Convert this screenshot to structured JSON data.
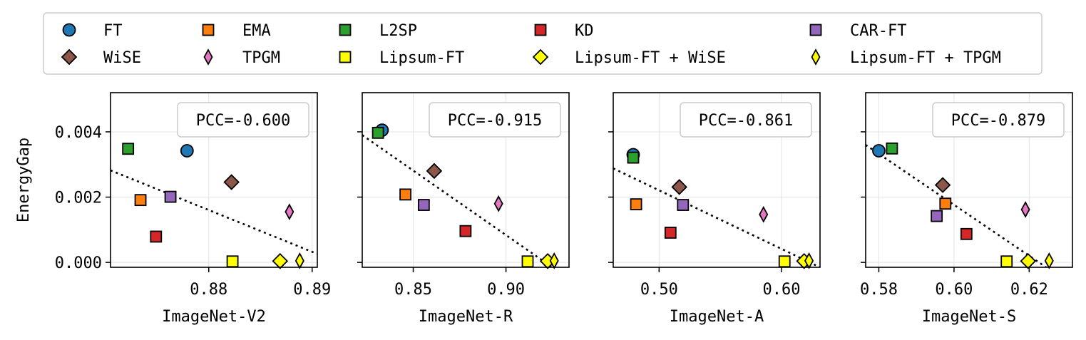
{
  "legend": {
    "items": [
      {
        "label": "FT",
        "marker": "circle",
        "color": "#1f77b4"
      },
      {
        "label": "EMA",
        "marker": "square",
        "color": "#ff7f0e"
      },
      {
        "label": "L2SP",
        "marker": "square",
        "color": "#2ca02c"
      },
      {
        "label": "KD",
        "marker": "square",
        "color": "#d62728"
      },
      {
        "label": "CAR-FT",
        "marker": "square",
        "color": "#9467bd"
      },
      {
        "label": "WiSE",
        "marker": "diamond",
        "color": "#8c564b"
      },
      {
        "label": "TPGM",
        "marker": "thin_diamond",
        "color": "#e377c2"
      },
      {
        "label": "Lipsum-FT",
        "marker": "square",
        "color": "#ffff00"
      },
      {
        "label": "Lipsum-FT + WiSE",
        "marker": "diamond",
        "color": "#ffff00"
      },
      {
        "label": "Lipsum-FT + TPGM",
        "marker": "thin_diamond",
        "color": "#ffff00"
      }
    ]
  },
  "chart_data": [
    {
      "type": "scatter",
      "xlabel": "ImageNet-V2",
      "ylabel": "EnergyGap",
      "annotation": "PCC=-0.600",
      "xlim": [
        0.8705,
        0.8905
      ],
      "ylim": [
        -0.00015,
        0.0052
      ],
      "xticks": [
        0.88,
        0.89
      ],
      "xtick_labels": [
        "0.88",
        "0.89"
      ],
      "yticks": [
        0.0,
        0.002,
        0.004
      ],
      "ytick_labels": [
        "0.000",
        "0.002",
        "0.004"
      ],
      "grid": true,
      "trendline": {
        "x": [
          0.8705,
          0.8905
        ],
        "y": [
          0.00282,
          0.00026
        ]
      },
      "points": [
        {
          "series": "FT",
          "x": 0.8779,
          "y": 0.00342
        },
        {
          "series": "EMA",
          "x": 0.8734,
          "y": 0.00191
        },
        {
          "series": "L2SP",
          "x": 0.8722,
          "y": 0.00348
        },
        {
          "series": "KD",
          "x": 0.8749,
          "y": 0.00079
        },
        {
          "series": "CAR-FT",
          "x": 0.8763,
          "y": 0.00201
        },
        {
          "series": "WiSE",
          "x": 0.8822,
          "y": 0.00246
        },
        {
          "series": "TPGM",
          "x": 0.8878,
          "y": 0.00155
        },
        {
          "series": "Lipsum-FT",
          "x": 0.8823,
          "y": 3e-05
        },
        {
          "series": "Lipsum-FT + WiSE",
          "x": 0.8869,
          "y": 4e-05
        },
        {
          "series": "Lipsum-FT + TPGM",
          "x": 0.8888,
          "y": 5e-05
        }
      ]
    },
    {
      "type": "scatter",
      "xlabel": "ImageNet-R",
      "ylabel": "",
      "annotation": "PCC=-0.915",
      "xlim": [
        0.8225,
        0.934
      ],
      "ylim": [
        -0.00015,
        0.0052
      ],
      "xticks": [
        0.85,
        0.9
      ],
      "xtick_labels": [
        "0.85",
        "0.90"
      ],
      "yticks": [
        0.0,
        0.002,
        0.004
      ],
      "ytick_labels": [
        "",
        "",
        ""
      ],
      "grid": true,
      "trendline": {
        "x": [
          0.8225,
          0.925
        ],
        "y": [
          0.0039,
          -0.00015
        ]
      },
      "points": [
        {
          "series": "FT",
          "x": 0.8332,
          "y": 0.00405
        },
        {
          "series": "EMA",
          "x": 0.8458,
          "y": 0.00208
        },
        {
          "series": "L2SP",
          "x": 0.831,
          "y": 0.00397
        },
        {
          "series": "KD",
          "x": 0.8782,
          "y": 0.00096
        },
        {
          "series": "CAR-FT",
          "x": 0.8557,
          "y": 0.00176
        },
        {
          "series": "WiSE",
          "x": 0.8613,
          "y": 0.0028
        },
        {
          "series": "TPGM",
          "x": 0.896,
          "y": 0.0018
        },
        {
          "series": "Lipsum-FT",
          "x": 0.9117,
          "y": 3e-05
        },
        {
          "series": "Lipsum-FT + WiSE",
          "x": 0.9225,
          "y": 4e-05
        },
        {
          "series": "Lipsum-FT + TPGM",
          "x": 0.926,
          "y": 5e-05
        }
      ]
    },
    {
      "type": "scatter",
      "xlabel": "ImageNet-A",
      "ylabel": "",
      "annotation": "PCC=-0.861",
      "xlim": [
        0.4625,
        0.6315
      ],
      "ylim": [
        -0.00015,
        0.0052
      ],
      "xticks": [
        0.5,
        0.6
      ],
      "xtick_labels": [
        "0.50",
        "0.60"
      ],
      "yticks": [
        0.0,
        0.002,
        0.004
      ],
      "ytick_labels": [
        "",
        "",
        ""
      ],
      "grid": true,
      "trendline": {
        "x": [
          0.4625,
          0.6315
        ],
        "y": [
          0.00288,
          -0.00015
        ]
      },
      "points": [
        {
          "series": "FT",
          "x": 0.4788,
          "y": 0.0033
        },
        {
          "series": "EMA",
          "x": 0.4812,
          "y": 0.00178
        },
        {
          "series": "L2SP",
          "x": 0.4788,
          "y": 0.00321
        },
        {
          "series": "KD",
          "x": 0.5093,
          "y": 0.00091
        },
        {
          "series": "CAR-FT",
          "x": 0.5195,
          "y": 0.00176
        },
        {
          "series": "WiSE",
          "x": 0.5165,
          "y": 0.00231
        },
        {
          "series": "TPGM",
          "x": 0.5853,
          "y": 0.00147
        },
        {
          "series": "Lipsum-FT",
          "x": 0.6025,
          "y": 3e-05
        },
        {
          "series": "Lipsum-FT + WiSE",
          "x": 0.6185,
          "y": 4e-05
        },
        {
          "series": "Lipsum-FT + TPGM",
          "x": 0.6225,
          "y": 5e-05
        }
      ]
    },
    {
      "type": "scatter",
      "xlabel": "ImageNet-S",
      "ylabel": "",
      "annotation": "PCC=-0.879",
      "xlim": [
        0.5765,
        0.6315
      ],
      "ylim": [
        -0.00015,
        0.0052
      ],
      "xticks": [
        0.58,
        0.6,
        0.62
      ],
      "xtick_labels": [
        "0.58",
        "0.60",
        "0.62"
      ],
      "yticks": [
        0.0,
        0.002,
        0.004
      ],
      "ytick_labels": [
        "",
        "",
        ""
      ],
      "grid": true,
      "trendline": {
        "x": [
          0.5765,
          0.6245
        ],
        "y": [
          0.0036,
          -0.00015
        ]
      },
      "points": [
        {
          "series": "FT",
          "x": 0.58,
          "y": 0.00342
        },
        {
          "series": "EMA",
          "x": 0.5977,
          "y": 0.0018
        },
        {
          "series": "L2SP",
          "x": 0.5835,
          "y": 0.00349
        },
        {
          "series": "KD",
          "x": 0.6033,
          "y": 0.00087
        },
        {
          "series": "CAR-FT",
          "x": 0.5954,
          "y": 0.00142
        },
        {
          "series": "WiSE",
          "x": 0.597,
          "y": 0.00237
        },
        {
          "series": "TPGM",
          "x": 0.619,
          "y": 0.00162
        },
        {
          "series": "Lipsum-FT",
          "x": 0.614,
          "y": 3e-05
        },
        {
          "series": "Lipsum-FT + WiSE",
          "x": 0.6197,
          "y": 4e-05
        },
        {
          "series": "Lipsum-FT + TPGM",
          "x": 0.6253,
          "y": 5e-05
        }
      ]
    }
  ]
}
